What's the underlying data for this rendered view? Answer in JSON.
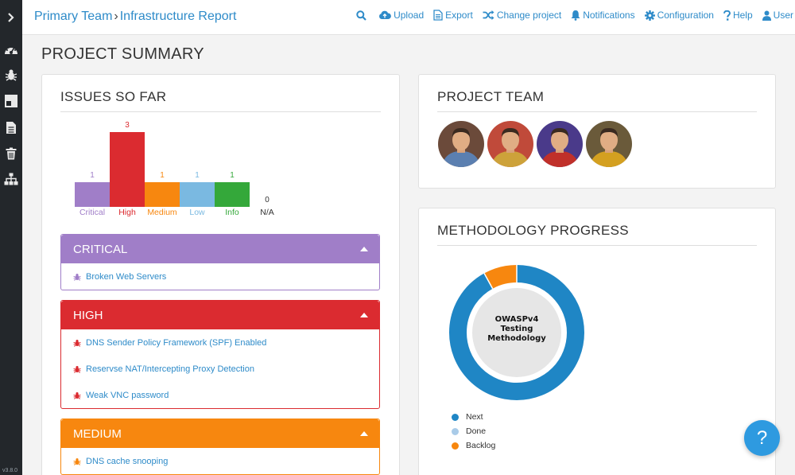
{
  "app": {
    "version": "v3.8.0"
  },
  "header": {
    "breadcrumb": [
      "Primary Team",
      "Infrastructure Report"
    ],
    "nav": [
      {
        "label": "",
        "icon": "search-icon"
      },
      {
        "label": "Upload",
        "icon": "cloud-upload-icon"
      },
      {
        "label": "Export",
        "icon": "file-export-icon"
      },
      {
        "label": "Change project",
        "icon": "shuffle-icon"
      },
      {
        "label": "Notifications",
        "icon": "bell-icon"
      },
      {
        "label": "Configuration",
        "icon": "gear-icon"
      },
      {
        "label": "Help",
        "icon": "question-icon"
      },
      {
        "label": "User",
        "icon": "user-icon"
      }
    ]
  },
  "sidebar": {
    "items": [
      {
        "icon": "chevron-right-icon"
      },
      {
        "icon": "dashboard-gauge-icon"
      },
      {
        "icon": "bug-icon"
      },
      {
        "icon": "columns-icon"
      },
      {
        "icon": "document-icon"
      },
      {
        "icon": "trash-icon"
      },
      {
        "icon": "sitemap-icon"
      }
    ]
  },
  "page": {
    "title": "PROJECT SUMMARY"
  },
  "issues": {
    "title": "ISSUES SO FAR",
    "colors": {
      "critical": "#a07ec8",
      "high": "#db2b30",
      "medium": "#f7870f",
      "low": "#7ab9e1",
      "info": "#34a83a",
      "na": "#333333"
    },
    "groups": [
      {
        "label": "CRITICAL",
        "color": "#a07ec8",
        "items": [
          "Broken Web Servers"
        ]
      },
      {
        "label": "HIGH",
        "color": "#db2b30",
        "items": [
          "DNS Sender Policy Framework (SPF) Enabled",
          "Reservse NAT/Intercepting Proxy Detection",
          "Weak VNC password"
        ]
      },
      {
        "label": "MEDIUM",
        "color": "#f7870f",
        "items": [
          "DNS cache snooping"
        ]
      }
    ]
  },
  "chart_data": {
    "type": "bar",
    "categories": [
      "Critical",
      "High",
      "Medium",
      "Low",
      "Info",
      "N/A"
    ],
    "values": [
      1,
      3,
      1,
      1,
      1,
      0
    ],
    "colors": [
      "#a07ec8",
      "#db2b30",
      "#f7870f",
      "#7ab9e1",
      "#34a83a",
      "#333333"
    ],
    "ylim": [
      0,
      3
    ]
  },
  "team": {
    "title": "PROJECT TEAM",
    "members": [
      {
        "avatar": "avatar-1",
        "uniform": "#5b7fb0",
        "bg": "#6b4a3a"
      },
      {
        "avatar": "avatar-2",
        "uniform": "#cda23a",
        "bg": "#c04a3a"
      },
      {
        "avatar": "avatar-3",
        "uniform": "#c0302a",
        "bg": "#4a3a8a"
      },
      {
        "avatar": "avatar-4",
        "uniform": "#d4a020",
        "bg": "#6a5a3a"
      }
    ]
  },
  "methodology": {
    "title": "METHODOLOGY PROGRESS",
    "center_lines": [
      "OWASPv4",
      "Testing",
      "Methodology"
    ],
    "legend": [
      {
        "label": "Next",
        "color": "#1f86c5",
        "value": 92
      },
      {
        "label": "Done",
        "color": "#a9cbe8",
        "value": 0
      },
      {
        "label": "Backlog",
        "color": "#f7870f",
        "value": 8
      }
    ]
  },
  "help_bubble": {
    "label": "?"
  }
}
